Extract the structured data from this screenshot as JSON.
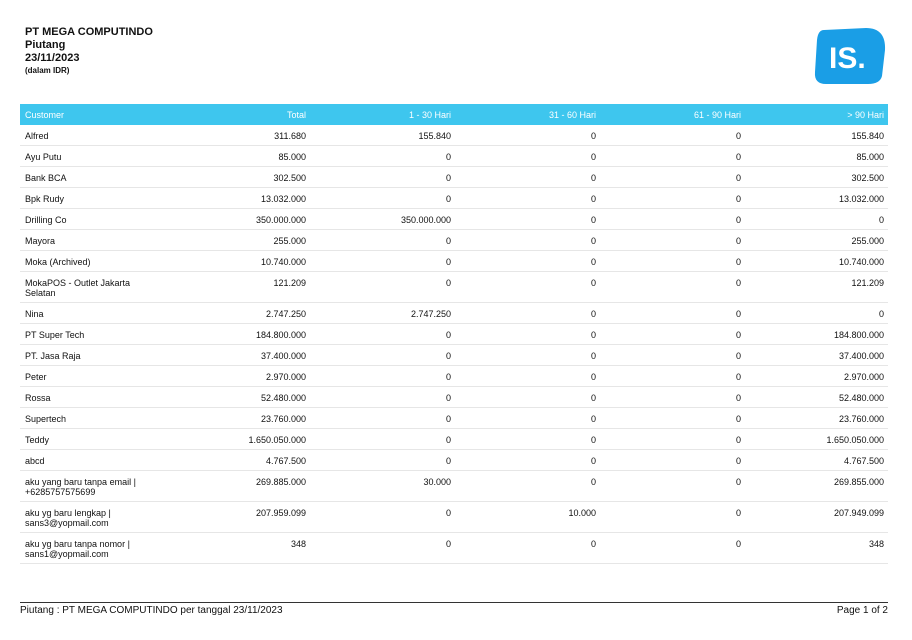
{
  "header": {
    "company": "PT MEGA COMPUTINDO",
    "title": "Piutang",
    "date": "23/11/2023",
    "currency_note": "(dalam IDR)"
  },
  "logo": {
    "text": "IS.",
    "color": "#1a9ee6"
  },
  "table": {
    "columns": [
      "Customer",
      "Total",
      "1 - 30 Hari",
      "31 - 60 Hari",
      "61 - 90 Hari",
      "> 90 Hari"
    ],
    "rows": [
      [
        "Alfred",
        "311.680",
        "155.840",
        "0",
        "0",
        "155.840"
      ],
      [
        "Ayu Putu",
        "85.000",
        "0",
        "0",
        "0",
        "85.000"
      ],
      [
        "Bank BCA",
        "302.500",
        "0",
        "0",
        "0",
        "302.500"
      ],
      [
        "Bpk Rudy",
        "13.032.000",
        "0",
        "0",
        "0",
        "13.032.000"
      ],
      [
        "Drilling Co",
        "350.000.000",
        "350.000.000",
        "0",
        "0",
        "0"
      ],
      [
        "Mayora",
        "255.000",
        "0",
        "0",
        "0",
        "255.000"
      ],
      [
        "Moka (Archived)",
        "10.740.000",
        "0",
        "0",
        "0",
        "10.740.000"
      ],
      [
        "MokaPOS - Outlet Jakarta Selatan",
        "121.209",
        "0",
        "0",
        "0",
        "121.209"
      ],
      [
        "Nina",
        "2.747.250",
        "2.747.250",
        "0",
        "0",
        "0"
      ],
      [
        "PT Super Tech",
        "184.800.000",
        "0",
        "0",
        "0",
        "184.800.000"
      ],
      [
        "PT. Jasa Raja",
        "37.400.000",
        "0",
        "0",
        "0",
        "37.400.000"
      ],
      [
        "Peter",
        "2.970.000",
        "0",
        "0",
        "0",
        "2.970.000"
      ],
      [
        "Rossa",
        "52.480.000",
        "0",
        "0",
        "0",
        "52.480.000"
      ],
      [
        "Supertech",
        "23.760.000",
        "0",
        "0",
        "0",
        "23.760.000"
      ],
      [
        "Teddy",
        "1.650.050.000",
        "0",
        "0",
        "0",
        "1.650.050.000"
      ],
      [
        "abcd",
        "4.767.500",
        "0",
        "0",
        "0",
        "4.767.500"
      ],
      [
        "aku yang baru tanpa email | +6285757575699",
        "269.885.000",
        "30.000",
        "0",
        "0",
        "269.855.000"
      ],
      [
        "aku yg baru lengkap | sans3@yopmail.com",
        "207.959.099",
        "0",
        "10.000",
        "0",
        "207.949.099"
      ],
      [
        "aku yg baru tanpa nomor | sans1@yopmail.com",
        "348",
        "0",
        "0",
        "0",
        "348"
      ]
    ]
  },
  "footer": {
    "left": "Piutang : PT MEGA COMPUTINDO per tanggal 23/11/2023",
    "right": "Page 1 of 2"
  }
}
